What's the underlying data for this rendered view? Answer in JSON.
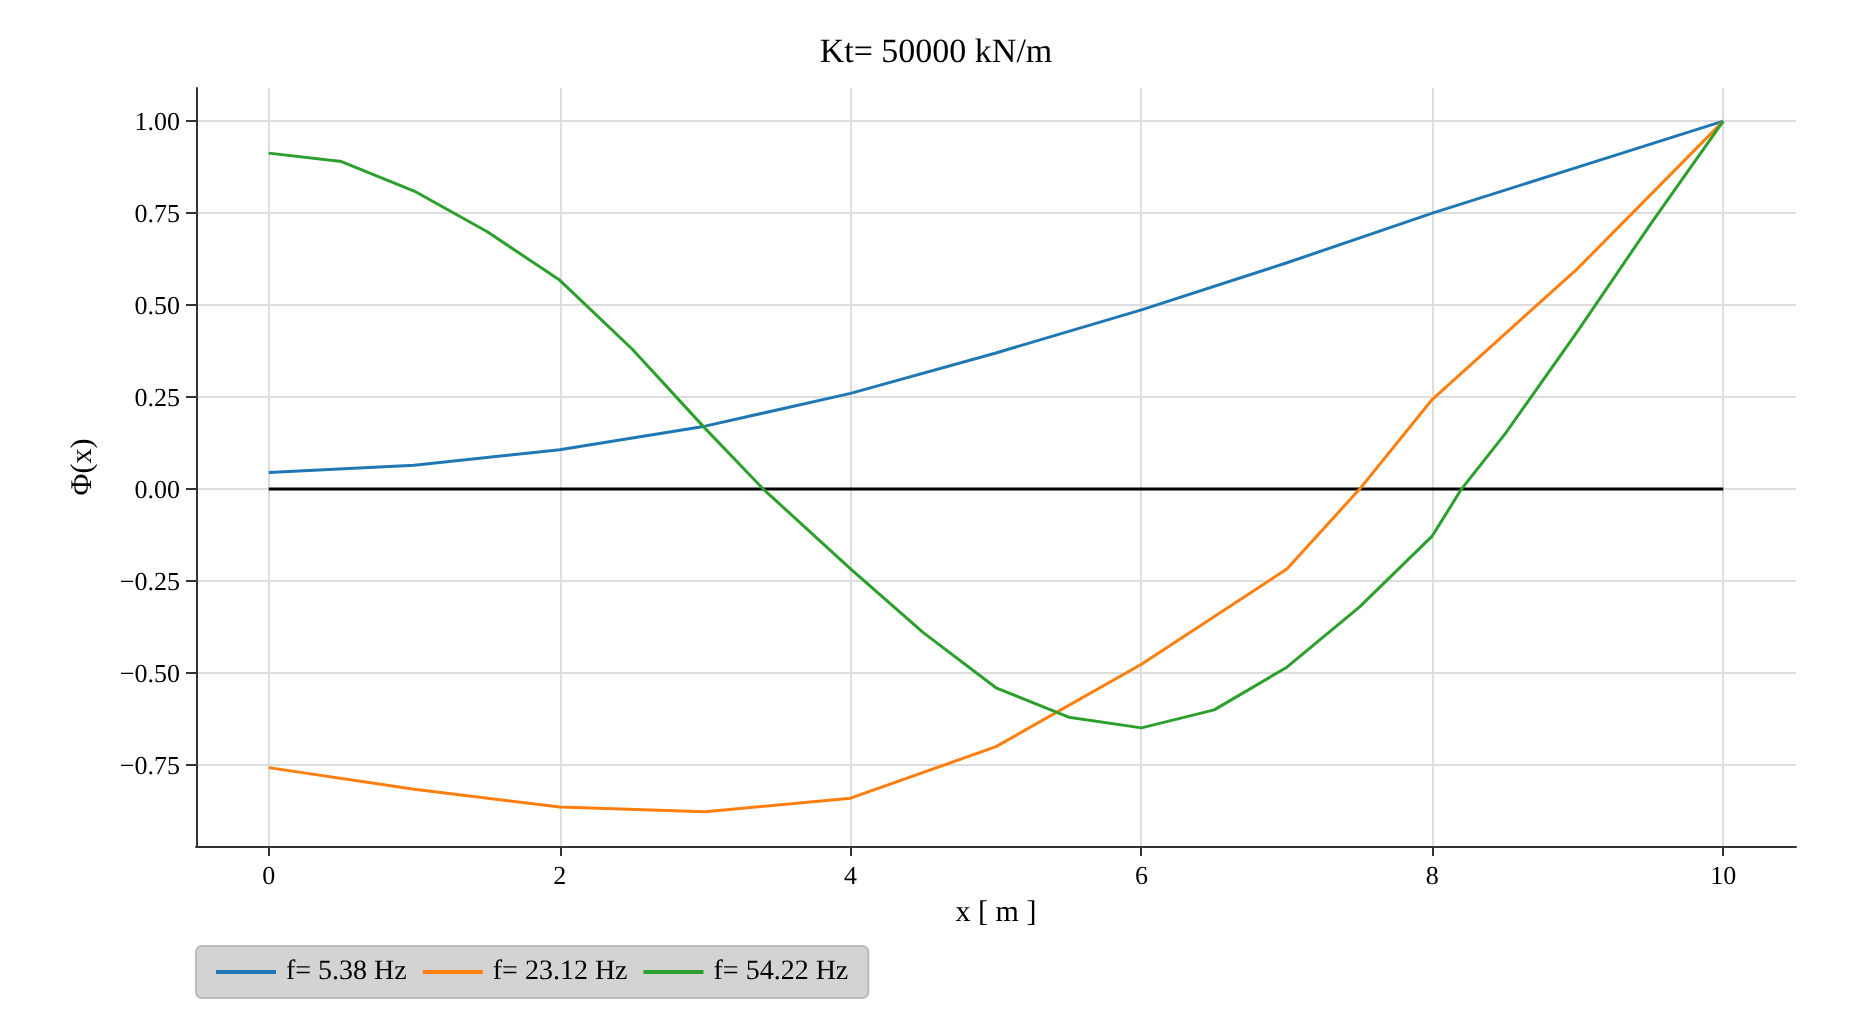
{
  "chart_data": {
    "type": "line",
    "title": "Kt= 50000 kN/m",
    "xlabel": "x [ m ]",
    "ylabel": "Φ(x)",
    "xlim": [
      -0.5,
      10.5
    ],
    "ylim": [
      -0.97,
      1.09
    ],
    "xticks": [
      0,
      2,
      4,
      6,
      8,
      10
    ],
    "yticks": [
      {
        "value": -0.75,
        "label": "−0.75"
      },
      {
        "value": -0.5,
        "label": "−0.50"
      },
      {
        "value": -0.25,
        "label": "−0.25"
      },
      {
        "value": 0,
        "label": "0.00"
      },
      {
        "value": 0.25,
        "label": "0.25"
      },
      {
        "value": 0.5,
        "label": "0.50"
      },
      {
        "value": 0.75,
        "label": "0.75"
      },
      {
        "value": 1,
        "label": "1.00"
      }
    ],
    "grid": true,
    "legend": "bottom left",
    "line_style": "solid",
    "marker": "none",
    "series": [
      {
        "name": "f= 5.38 Hz",
        "color": "#1f77b4",
        "x": [
          0,
          1,
          2,
          3,
          4,
          5,
          6,
          7,
          8,
          9,
          10
        ],
        "values": [
          0.045,
          0.065,
          0.107,
          0.171,
          0.26,
          0.37,
          0.487,
          0.615,
          0.75,
          0.875,
          1.0
        ]
      },
      {
        "name": "f= 23.12 Hz",
        "color": "#ff7f0e",
        "x": [
          0,
          1,
          2,
          3,
          4,
          5,
          6,
          7,
          7.5,
          8,
          9,
          10
        ],
        "values": [
          -0.757,
          -0.816,
          -0.864,
          -0.877,
          -0.84,
          -0.7,
          -0.476,
          -0.217,
          0,
          0.244,
          0.6,
          1.0
        ]
      },
      {
        "name": "f= 54.22 Hz",
        "color": "#2ca02c",
        "x": [
          0,
          0.5,
          1,
          1.5,
          2,
          2.5,
          3,
          3.4,
          4,
          4.5,
          5,
          5.5,
          6,
          6.5,
          7,
          7.5,
          8,
          8.2,
          8.5,
          9,
          9.5,
          10
        ],
        "values": [
          0.913,
          0.89,
          0.81,
          0.7,
          0.568,
          0.38,
          0.165,
          0,
          -0.217,
          -0.39,
          -0.54,
          -0.62,
          -0.649,
          -0.6,
          -0.484,
          -0.32,
          -0.127,
          0,
          0.15,
          0.43,
          0.72,
          1.0
        ]
      },
      {
        "color": "#000000",
        "x": [
          0,
          10
        ],
        "values": [
          0,
          0
        ]
      }
    ]
  }
}
